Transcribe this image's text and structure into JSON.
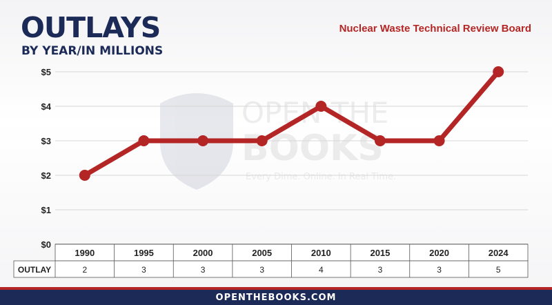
{
  "header": {
    "title": "OUTLAYS",
    "subtitle": "BY YEAR/IN MILLIONS",
    "agency": "Nuclear Waste Technical Review Board"
  },
  "watermark": {
    "line1": "OPEN THE",
    "line2": "BOOKS",
    "tagline": "Every Dime. Online. In Real Time."
  },
  "footer": {
    "text": "OPENTHEBOOKS.COM"
  },
  "colors": {
    "navy": "#1b2a57",
    "red": "#b42625",
    "line": "#b42625"
  },
  "chart_data": {
    "type": "line",
    "categories": [
      "1990",
      "1995",
      "2000",
      "2005",
      "2010",
      "2015",
      "2020",
      "2024"
    ],
    "values": [
      2,
      3,
      3,
      3,
      4,
      3,
      3,
      5
    ],
    "yticks": [
      "$0",
      "$1",
      "$2",
      "$3",
      "$4",
      "$5"
    ],
    "ylim": [
      0,
      5
    ],
    "grid": true,
    "table": {
      "row_label": "OUTLAY",
      "values": [
        "2",
        "3",
        "3",
        "3",
        "4",
        "3",
        "3",
        "5"
      ]
    }
  }
}
